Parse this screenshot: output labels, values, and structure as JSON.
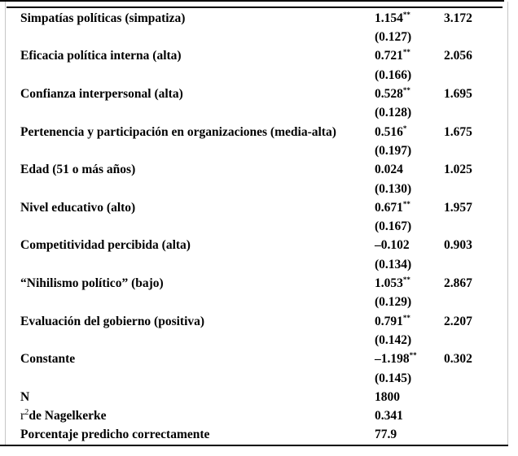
{
  "table": {
    "rows": [
      {
        "label": "Simpatías políticas (simpatiza)",
        "coef": "1.154",
        "stars": "**",
        "se": "(0.127)",
        "odds_ratio": "3.172"
      },
      {
        "label": "Eficacia política interna (alta)",
        "coef": "0.721",
        "stars": "**",
        "se": "(0.166)",
        "odds_ratio": "2.056"
      },
      {
        "label": "Confianza interpersonal (alta)",
        "coef": "0.528",
        "stars": "**",
        "se": "(0.128)",
        "odds_ratio": "1.695"
      },
      {
        "label": "Pertenencia y participación en organizaciones (media-alta)",
        "coef": "0.516",
        "stars": "*",
        "se": "(0.197)",
        "odds_ratio": "1.675"
      },
      {
        "label": "Edad (51 o más años)",
        "coef": "0.024",
        "stars": "",
        "se": "(0.130)",
        "odds_ratio": "1.025"
      },
      {
        "label": "Nivel educativo (alto)",
        "coef": "0.671",
        "stars": "**",
        "se": "(0.167)",
        "odds_ratio": "1.957"
      },
      {
        "label": "Competitividad percibida (alta)",
        "coef": "–0.102",
        "stars": "",
        "se": "(0.134)",
        "odds_ratio": "0.903"
      },
      {
        "label": "“Nihilismo político” (bajo)",
        "coef": "1.053",
        "stars": "**",
        "se": "(0.129)",
        "odds_ratio": "2.867"
      },
      {
        "label": "Evaluación del gobierno (positiva)",
        "coef": "0.791",
        "stars": "**",
        "se": "(0.142)",
        "odds_ratio": "2.207"
      },
      {
        "label": "Constante",
        "coef": "–1.198",
        "stars": "**",
        "se": "(0.145)",
        "odds_ratio": "0.302"
      }
    ],
    "summary": {
      "n": {
        "label": "N",
        "value": "1800"
      },
      "r2": {
        "prefix": "r",
        "sup": "2",
        "label": "de Nagelkerke",
        "value": "0.341"
      },
      "pct": {
        "label": "Porcentaje predicho correctamente",
        "value": "77.9"
      }
    }
  }
}
